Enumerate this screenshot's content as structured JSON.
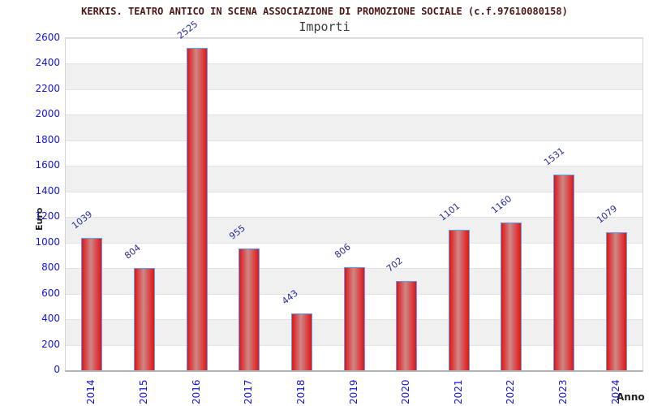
{
  "chart_data": {
    "type": "bar",
    "title": "KERKIS. TEATRO ANTICO IN SCENA ASSOCIAZIONE DI PROMOZIONE SOCIALE (c.f.97610080158)",
    "subtitle": "Importi",
    "xlabel": "Anno",
    "ylabel": "Euro",
    "categories": [
      "2014",
      "2015",
      "2016",
      "2017",
      "2018",
      "2019",
      "2020",
      "2021",
      "2022",
      "2023",
      "2024"
    ],
    "values": [
      1039,
      804,
      2525,
      955,
      443,
      806,
      702,
      1101,
      1160,
      1531,
      1079
    ],
    "ylim": [
      0,
      2600
    ],
    "ytick_step": 200,
    "grid": true,
    "legend_position": "none",
    "background_bands": "alternating gray every 200 starting at 200",
    "colors": {
      "title_text": "#4d1717",
      "subtitle_text": "#3c3c3c",
      "axis_label_text": "#222222",
      "tick_label_blue": "#1414dd",
      "value_label_blue": "#2a2a99",
      "bar_edge_red": "#e01515",
      "bar_center_light": "#cf8888",
      "bar_border_blue": "#58a0f8",
      "band_gray": "#f0f0f0",
      "gridline_gray": "#e2e2e2",
      "plot_border_gray": "#d4d4d4"
    }
  }
}
